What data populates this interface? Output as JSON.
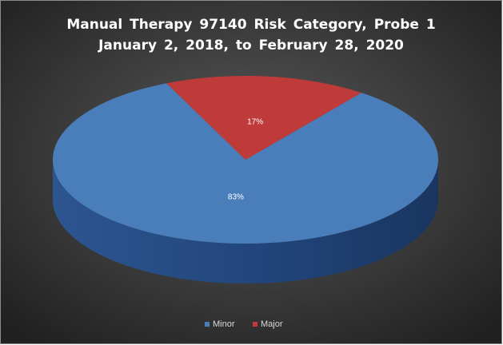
{
  "chart_data": {
    "type": "pie",
    "title": "Manual Therapy 97140 Risk Category, Probe 1",
    "subtitle": "January 2, 2018, to February 28, 2020",
    "categories": [
      "Minor",
      "Major"
    ],
    "values": [
      83,
      17
    ],
    "value_labels": [
      "83%",
      "17%"
    ],
    "colors": [
      "#4a7ebb",
      "#be3b3a"
    ],
    "legend": "bottom"
  }
}
